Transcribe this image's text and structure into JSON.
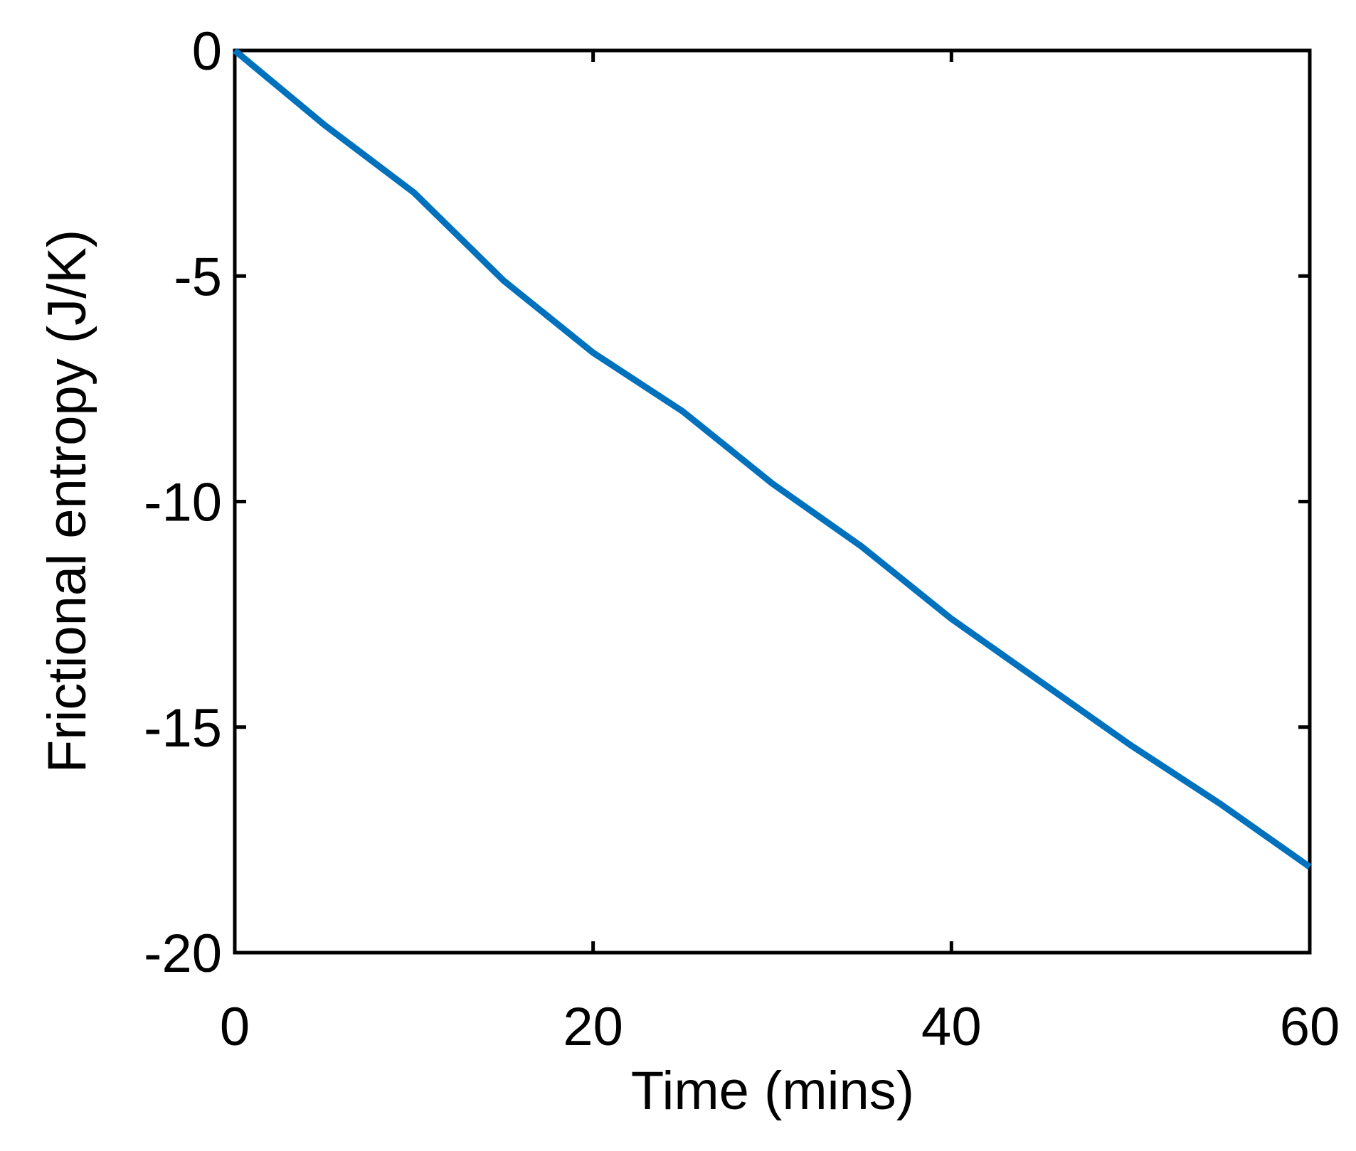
{
  "chart_data": {
    "type": "line",
    "xlabel": "Time (mins)",
    "ylabel": "Frictional entropy (J/K)",
    "x": [
      0,
      5,
      10,
      15,
      20,
      25,
      30,
      35,
      40,
      45,
      50,
      55,
      60
    ],
    "series": [
      {
        "color": "#0072bd",
        "values": [
          0,
          -1.65,
          -3.15,
          -5.1,
          -6.7,
          -8.0,
          -9.6,
          -11.0,
          -12.6,
          -14.0,
          -15.4,
          -16.7,
          -18.1
        ]
      }
    ],
    "xlim": [
      0,
      60
    ],
    "xticks": [
      0,
      20,
      40,
      60
    ],
    "ylim": [
      -20,
      0
    ],
    "yticks": [
      -20,
      -15,
      -10,
      -5,
      0
    ]
  }
}
